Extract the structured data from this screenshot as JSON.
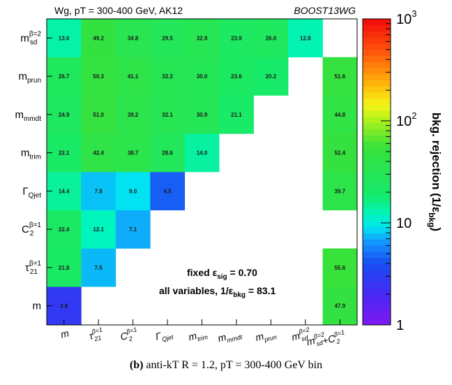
{
  "chart_data": {
    "type": "heatmap",
    "title_left": "Wg, pT = 300-400 GeV, AK12",
    "title_right": "BOOST13WG",
    "y_categories": [
      "m",
      "τ21(β=1)",
      "C2(β=1)",
      "ΓQjet",
      "mtrim",
      "mmmdt",
      "mprun",
      "msd(β=2)"
    ],
    "x_categories": [
      "m",
      "τ21(β=1)",
      "C2(β=1)",
      "ΓQjet",
      "mtrim",
      "mmmdt",
      "mprun",
      "msd(β=2)",
      "msd(β=2)+C2(β=1)"
    ],
    "values": [
      [
        2.8,
        null,
        null,
        null,
        null,
        null,
        null,
        null,
        47.9
      ],
      [
        21.8,
        7.5,
        null,
        null,
        null,
        null,
        null,
        null,
        55.6
      ],
      [
        22.4,
        12.1,
        7.1,
        null,
        null,
        null,
        null,
        null,
        null
      ],
      [
        14.4,
        7.8,
        9.0,
        4.5,
        null,
        null,
        null,
        null,
        39.7
      ],
      [
        22.1,
        42.4,
        38.7,
        28.6,
        14.0,
        null,
        null,
        null,
        52.4
      ],
      [
        24.9,
        51.0,
        39.2,
        32.1,
        30.9,
        21.1,
        null,
        null,
        44.8
      ],
      [
        26.7,
        50.3,
        41.1,
        32.2,
        30.0,
        23.6,
        20.2,
        null,
        51.6
      ],
      [
        13.6,
        49.2,
        34.8,
        29.5,
        32.9,
        23.9,
        26.0,
        12.8,
        null
      ]
    ],
    "zscale": "log",
    "zlim": [
      1,
      1000
    ],
    "colorbar_ticks": [
      "1",
      "10",
      "10",
      "10"
    ],
    "colorbar_tick_exponents": [
      "",
      "",
      "2",
      "3"
    ],
    "zlabel": "bkg. rejection (1/ε",
    "zlabel_sub": "bkg",
    "zlabel_close": ")",
    "annotation_line1": "fixed ε",
    "annotation_line1_sub": "sig",
    "annotation_line1_value": " = 0.70",
    "annotation_line2": "all variables, 1/ε",
    "annotation_line2_sub": "bkg",
    "annotation_line2_value": " = 83.1"
  },
  "caption": {
    "label": "(b)",
    "text": "anti-kT R = 1.2, pT = 300-400 GeV bin"
  }
}
